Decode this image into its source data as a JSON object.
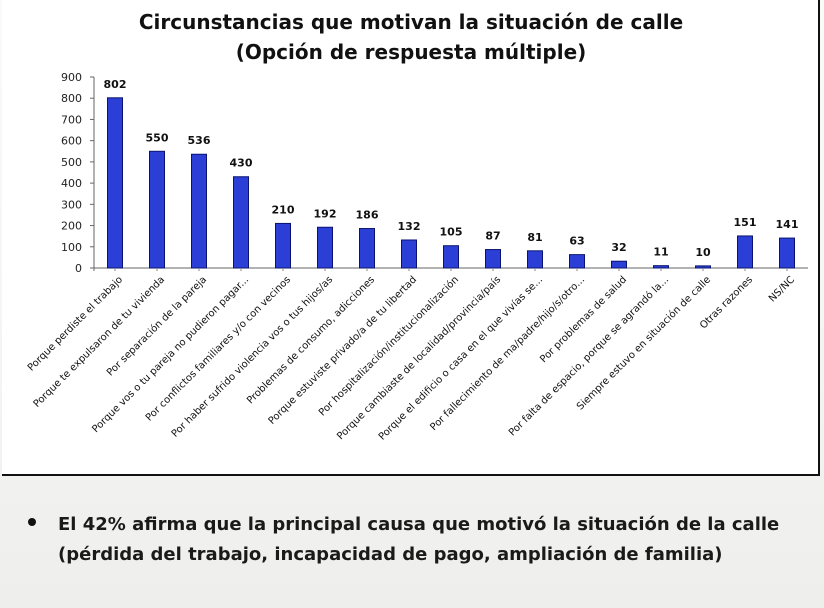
{
  "slide": {
    "bullet": "El 42% afirma que la principal causa que motivó la situación de la calle (pérdida del trabajo, incapacidad de pago, ampliación de familia)"
  },
  "chart_data": {
    "type": "bar",
    "title": "Circunstancias que motivan la situación de calle",
    "subtitle": "(Opción de respuesta múltiple)",
    "xlabel": "",
    "ylabel": "",
    "ylim": [
      0,
      900
    ],
    "yticks": [
      0,
      100,
      200,
      300,
      400,
      500,
      600,
      700,
      800,
      900
    ],
    "grid": false,
    "legend": "none",
    "bar_color": "#2b3fd6",
    "bar_edge_color": "#0a1470",
    "categories": [
      "Porque perdiste el trabajo",
      "Porque te expulsaron de tu vivienda",
      "Por separación de la pareja",
      "Porque vos o tu pareja no pudieron pagar...",
      "Por conflictos familiares y/o con vecinos",
      "Por haber sufrido violencia vos o tus hijos/as",
      "Problemas de consumo, adicciones",
      "Porque estuviste privado/a de tu libertad",
      "Por hospitalización/institucionalización",
      "Porque cambiaste de localidad/provincia/país",
      "Porque el edificio o casa en el que vivías se...",
      "Por fallecimiento de ma/padre/hijo/s/otro...",
      "Por problemas de salud",
      "Por falta de espacio, porque se agrandó la...",
      "Siempre estuvo en situación de calle",
      "Otras razones",
      "NS/NC"
    ],
    "values": [
      802,
      550,
      536,
      430,
      210,
      192,
      186,
      132,
      105,
      87,
      81,
      63,
      32,
      11,
      10,
      151,
      141
    ],
    "data_labels": [
      "802",
      "550",
      "536",
      "430",
      "210",
      "192",
      "186",
      "132",
      "105",
      "87",
      "81",
      "63",
      "32",
      "11",
      "10",
      "151",
      "141"
    ]
  }
}
